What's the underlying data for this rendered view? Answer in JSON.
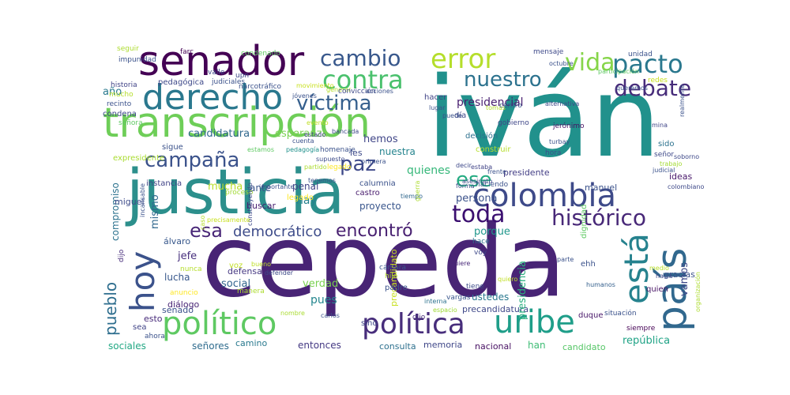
{
  "palette": {
    "dark_purple": "#440154",
    "indigo": "#3b528b",
    "teal": "#21918c",
    "green": "#5ec962",
    "yellow": "#d8e219",
    "background": "#ffffff"
  },
  "words": [
    {
      "text": "iván",
      "color": "#21918c"
    },
    {
      "text": "cepeda",
      "color": "#482475"
    },
    {
      "text": "justicia",
      "color": "#2c8f8c"
    },
    {
      "text": "transcripción",
      "color": "#6ece58"
    },
    {
      "text": "senador",
      "color": "#440154"
    },
    {
      "text": "colombia",
      "color": "#3e4a89"
    },
    {
      "text": "derecho",
      "color": "#2a788e"
    },
    {
      "text": "político",
      "color": "#5ec962"
    },
    {
      "text": "uribe",
      "color": "#1f9e89"
    },
    {
      "text": "país",
      "color": "#31688e"
    },
    {
      "text": "está",
      "color": "#26828e"
    },
    {
      "text": "hoy",
      "color": "#3b528b"
    },
    {
      "text": "histórico",
      "color": "#482878"
    },
    {
      "text": "política",
      "color": "#472d7b"
    },
    {
      "text": "víctima",
      "color": "#355f8d"
    },
    {
      "text": "pacto",
      "color": "#2a788e"
    },
    {
      "text": "contra",
      "color": "#4ac16d"
    },
    {
      "text": "error",
      "color": "#b5de2b"
    },
    {
      "text": "cambio",
      "color": "#38588c"
    },
    {
      "text": "vida",
      "color": "#86d549"
    },
    {
      "text": "nuestro",
      "color": "#2c728e"
    },
    {
      "text": "debate",
      "color": "#472c7a"
    },
    {
      "text": "toda",
      "color": "#3b0f70"
    },
    {
      "text": "campaña",
      "color": "#3b528b"
    },
    {
      "text": "paz",
      "color": "#3e4989"
    },
    {
      "text": "ese",
      "color": "#25ab82"
    },
    {
      "text": "esa",
      "color": "#482677"
    },
    {
      "text": "democrático",
      "color": "#3e4c8a"
    },
    {
      "text": "encontró",
      "color": "#482071"
    },
    {
      "text": "pueblo",
      "color": "#2e6e8e"
    },
    {
      "text": "candidatura",
      "color": "#31688e"
    },
    {
      "text": "esperanza",
      "color": "#7ad151"
    },
    {
      "text": "presidencial",
      "color": "#481f70"
    },
    {
      "text": "hemos",
      "color": "#404688"
    },
    {
      "text": "nuestra",
      "color": "#25848e"
    },
    {
      "text": "les",
      "color": "#3e4a89"
    },
    {
      "text": "quienes",
      "color": "#35b779"
    },
    {
      "text": "persona",
      "color": "#3b528b"
    },
    {
      "text": "hay",
      "color": "#26828e"
    },
    {
      "text": "año",
      "color": "#29798e"
    },
    {
      "text": "mucha",
      "color": "#b8de29"
    },
    {
      "text": "ante",
      "color": "#39568c"
    },
    {
      "text": "penal",
      "color": "#414487"
    },
    {
      "text": "república",
      "color": "#20a386"
    },
    {
      "text": "señores",
      "color": "#2f6c8e"
    },
    {
      "text": "camino",
      "color": "#29798e"
    },
    {
      "text": "entonces",
      "color": "#443983"
    },
    {
      "text": "consulta",
      "color": "#2d708e"
    },
    {
      "text": "memoria",
      "color": "#3f4788"
    },
    {
      "text": "nacional",
      "color": "#471063"
    },
    {
      "text": "han",
      "color": "#3dbc74"
    },
    {
      "text": "candidato",
      "color": "#56c667"
    },
    {
      "text": "sociales",
      "color": "#22a884"
    },
    {
      "text": "senado",
      "color": "#3b528b"
    },
    {
      "text": "pues",
      "color": "#24868e"
    },
    {
      "text": "verdad",
      "color": "#7ad151"
    },
    {
      "text": "social",
      "color": "#32658e"
    },
    {
      "text": "lucha",
      "color": "#38588c"
    },
    {
      "text": "jefe",
      "color": "#472f7d"
    },
    {
      "text": "porque",
      "color": "#1f978b"
    },
    {
      "text": "ustedes",
      "color": "#2a788e"
    },
    {
      "text": "gracias",
      "color": "#3b528b"
    },
    {
      "text": "vamos",
      "color": "#3e4989"
    },
    {
      "text": "ideas",
      "color": "#48186a"
    },
    {
      "text": "manuel",
      "color": "#3b528b"
    },
    {
      "text": "presidente",
      "color": "#433e85"
    },
    {
      "text": "precandidatura",
      "color": "#3f4889"
    },
    {
      "text": "presidencia",
      "color": "#29af7f"
    },
    {
      "text": "nosotros",
      "color": "#2a788e"
    },
    {
      "text": "defensa",
      "color": "#453781"
    },
    {
      "text": "proyecto",
      "color": "#39568c"
    },
    {
      "text": "castro",
      "color": "#481b6d"
    },
    {
      "text": "calumnia",
      "color": "#3b528b"
    },
    {
      "text": "mismo",
      "color": "#31688e"
    },
    {
      "text": "compromiso",
      "color": "#2c728e"
    },
    {
      "text": "instancia",
      "color": "#414487"
    },
    {
      "text": "miguel",
      "color": "#3e4c8a"
    },
    {
      "text": "álvaro",
      "color": "#38588c"
    },
    {
      "text": "esto",
      "color": "#472a7a"
    },
    {
      "text": "sea",
      "color": "#414487"
    },
    {
      "text": "ahora",
      "color": "#3b528b"
    },
    {
      "text": "diálogo",
      "color": "#482475"
    },
    {
      "text": "anuncio",
      "color": "#fde725"
    },
    {
      "text": "nunca",
      "color": "#b5de2b"
    },
    {
      "text": "voz",
      "color": "#c2df23"
    },
    {
      "text": "manera",
      "color": "#addc30"
    },
    {
      "text": "defender",
      "color": "#3e4a89"
    },
    {
      "text": "bueno",
      "color": "#bddf26"
    },
    {
      "text": "buscar",
      "color": "#482071"
    },
    {
      "text": "precandidato",
      "color": "#c8e020"
    },
    {
      "text": "legado",
      "color": "#fde725"
    },
    {
      "text": "proceso",
      "color": "#a2da37"
    },
    {
      "text": "cámara",
      "color": "#39568c"
    },
    {
      "text": "hijo",
      "color": "#b5de2b"
    },
    {
      "text": "padre",
      "color": "#3b528b"
    },
    {
      "text": "sino",
      "color": "#404688"
    },
    {
      "text": "dijo",
      "color": "#472d7b"
    },
    {
      "text": "nombre",
      "color": "#aadc32"
    },
    {
      "text": "carlos",
      "color": "#3b528b"
    },
    {
      "text": "espacio",
      "color": "#a0da39"
    },
    {
      "text": "interna",
      "color": "#2c728e"
    },
    {
      "text": "vargas",
      "color": "#39568c"
    },
    {
      "text": "tiene",
      "color": "#3e4c8a"
    },
    {
      "text": "quiero",
      "color": "#c0df25"
    },
    {
      "text": "parte",
      "color": "#3b528b"
    },
    {
      "text": "quiere",
      "color": "#482878"
    },
    {
      "text": "voy",
      "color": "#3e4989"
    },
    {
      "text": "hace",
      "color": "#2d708e"
    },
    {
      "text": "ehh",
      "color": "#3b528b"
    },
    {
      "text": "duque",
      "color": "#481769"
    },
    {
      "text": "situación",
      "color": "#3b528b"
    },
    {
      "text": "siempre",
      "color": "#440154"
    },
    {
      "text": "quien",
      "color": "#471365"
    },
    {
      "text": "hacia",
      "color": "#3e4989"
    },
    {
      "text": "medio",
      "color": "#b8de29"
    },
    {
      "text": "humanos",
      "color": "#35608d"
    },
    {
      "text": "dignidad",
      "color": "#5ec962"
    },
    {
      "text": "hora",
      "color": "#3b528b"
    },
    {
      "text": "sido",
      "color": "#2c728e"
    },
    {
      "text": "señor",
      "color": "#3e4989"
    },
    {
      "text": "trabajo",
      "color": "#a5db36"
    },
    {
      "text": "judicial",
      "color": "#3b528b"
    },
    {
      "text": "soborno",
      "color": "#3e4989"
    },
    {
      "text": "mina",
      "color": "#404688"
    },
    {
      "text": "jerónimo",
      "color": "#471164"
    },
    {
      "text": "turbay",
      "color": "#3b528b"
    },
    {
      "text": "tomás",
      "color": "#b5de2b"
    },
    {
      "text": "gobierno",
      "color": "#3f4788"
    },
    {
      "text": "decisión",
      "color": "#2d708e"
    },
    {
      "text": "construir",
      "color": "#b5de2b"
    },
    {
      "text": "centro",
      "color": "#39568c"
    },
    {
      "text": "puede",
      "color": "#3b528b"
    },
    {
      "text": "día",
      "color": "#3e4a89"
    },
    {
      "text": "hacer",
      "color": "#414487"
    },
    {
      "text": "lugar",
      "color": "#3b528b"
    },
    {
      "text": "bancada",
      "color": "#3e4989"
    },
    {
      "text": "cuenta",
      "color": "#3b528b"
    },
    {
      "text": "estado",
      "color": "#414487"
    },
    {
      "text": "pedagogía",
      "color": "#21918c"
    },
    {
      "text": "homenaje",
      "color": "#3b528b"
    },
    {
      "text": "supuesto",
      "color": "#3e4c8a"
    },
    {
      "text": "partido",
      "color": "#addc30"
    },
    {
      "text": "tenemos",
      "color": "#3b528b"
    },
    {
      "text": "legado",
      "color": "#fde725"
    },
    {
      "text": "primera",
      "color": "#3b528b"
    },
    {
      "text": "decir",
      "color": "#3e4989"
    },
    {
      "text": "estaba",
      "color": "#414487"
    },
    {
      "text": "frente",
      "color": "#3b528b"
    },
    {
      "text": "forma",
      "color": "#3e4c8a"
    },
    {
      "text": "asesinato",
      "color": "#3e4989"
    },
    {
      "text": "haciendo",
      "color": "#3b528b"
    },
    {
      "text": "tiempo",
      "color": "#31688e"
    },
    {
      "text": "guerra",
      "color": "#addc30"
    },
    {
      "text": "importante",
      "color": "#3b528b"
    },
    {
      "text": "construyendo",
      "color": "#3e4989"
    },
    {
      "text": "caso",
      "color": "#b5de2b"
    },
    {
      "text": "precisamente",
      "color": "#c8e020"
    },
    {
      "text": "sigue",
      "color": "#3b528b"
    },
    {
      "text": "expresidente",
      "color": "#aadc32"
    },
    {
      "text": "estamos",
      "color": "#5ec962"
    },
    {
      "text": "evento",
      "color": "#c0df25"
    },
    {
      "text": "movimiento",
      "color": "#c8e020"
    },
    {
      "text": "jóvenes",
      "color": "#3b528b"
    },
    {
      "text": "generar",
      "color": "#b5de2b"
    },
    {
      "text": "convicción",
      "color": "#3e4989"
    },
    {
      "text": "acciones",
      "color": "#3b528b"
    },
    {
      "text": "alternativa",
      "color": "#3e4c8a"
    },
    {
      "text": "octubre",
      "color": "#3b528b"
    },
    {
      "text": "mensaje",
      "color": "#3e4989"
    },
    {
      "text": "unidad",
      "color": "#3b528b"
    },
    {
      "text": "participación",
      "color": "#5ec962"
    },
    {
      "text": "queremos",
      "color": "#3b528b"
    },
    {
      "text": "redes",
      "color": "#c8e020"
    },
    {
      "text": "colombiano",
      "color": "#3e4989"
    },
    {
      "text": "encuentro",
      "color": "#3b528b"
    },
    {
      "text": "organización",
      "color": "#addc30"
    },
    {
      "text": "realmente",
      "color": "#3b528b"
    },
    {
      "text": "pedagógica",
      "color": "#3e4989"
    },
    {
      "text": "judiciales",
      "color": "#3b528b"
    },
    {
      "text": "historia",
      "color": "#414487"
    },
    {
      "text": "mucho",
      "color": "#b5de2b"
    },
    {
      "text": "recinto",
      "color": "#3b528b"
    },
    {
      "text": "condena",
      "color": "#3e4989"
    },
    {
      "text": "señora",
      "color": "#5ec962"
    },
    {
      "text": "seguir",
      "color": "#addc30"
    },
    {
      "text": "impunidad",
      "color": "#3b528b"
    },
    {
      "text": "farc",
      "color": "#440154"
    },
    {
      "text": "valle",
      "color": "#3e4989"
    },
    {
      "text": "condenado",
      "color": "#5ec962"
    },
    {
      "text": "narcotráfico",
      "color": "#3b528b"
    },
    {
      "text": "upn",
      "color": "#3e4989"
    },
    {
      "text": "dijo",
      "color": "#472d7b"
    },
    {
      "text": "incansable",
      "color": "#3b528b"
    },
    {
      "text": "alternativo",
      "color": "#3e4989"
    },
    {
      "text": "encontró",
      "color": "#482071"
    },
    {
      "text": "trabajo",
      "color": "#a5db36"
    }
  ]
}
